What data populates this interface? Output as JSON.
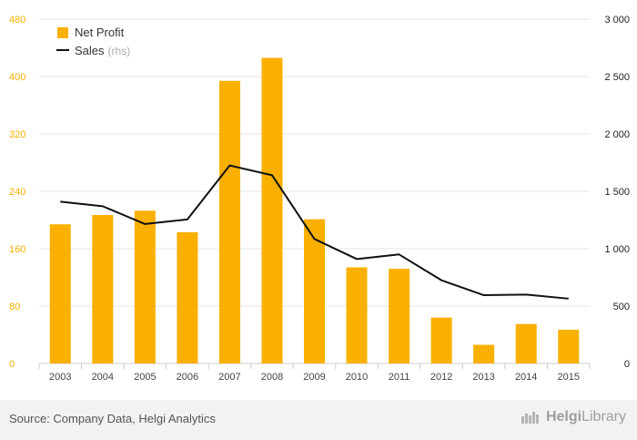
{
  "chart_data": {
    "type": "bar",
    "categories": [
      "2003",
      "2004",
      "2005",
      "2006",
      "2007",
      "2008",
      "2009",
      "2010",
      "2011",
      "2012",
      "2013",
      "2014",
      "2015"
    ],
    "series": [
      {
        "name": "Net Profit",
        "type": "bar",
        "axis": "left",
        "color": "#f9b000",
        "values": [
          194,
          207,
          213,
          183,
          394,
          426,
          201,
          134,
          132,
          64,
          26,
          55,
          47
        ]
      },
      {
        "name": "Sales",
        "type": "line",
        "axis": "right",
        "color": "#111111",
        "values": [
          1410,
          1370,
          1215,
          1255,
          1725,
          1640,
          1085,
          910,
          950,
          725,
          595,
          600,
          565
        ]
      }
    ],
    "legend": [
      {
        "label": "Net Profit",
        "suffix": ""
      },
      {
        "label": "Sales",
        "suffix": "(rhs)"
      }
    ],
    "left_axis": {
      "ticks": [
        "0",
        "80",
        "160",
        "240",
        "320",
        "400",
        "480"
      ],
      "range": [
        0,
        480
      ]
    },
    "right_axis": {
      "ticks": [
        "0",
        "500",
        "1 000",
        "1 500",
        "2 000",
        "2 500",
        "3 000"
      ],
      "range": [
        0,
        3000
      ]
    },
    "grid": true,
    "legend_position": "top-left",
    "colors": {
      "left_tick": "#f9b000",
      "right_tick": "#222222",
      "grid": "#e6e6e6"
    }
  },
  "footer": {
    "source": "Source: Company Data, Helgi Analytics",
    "brand_bold": "Helgi",
    "brand_light": "Library"
  }
}
